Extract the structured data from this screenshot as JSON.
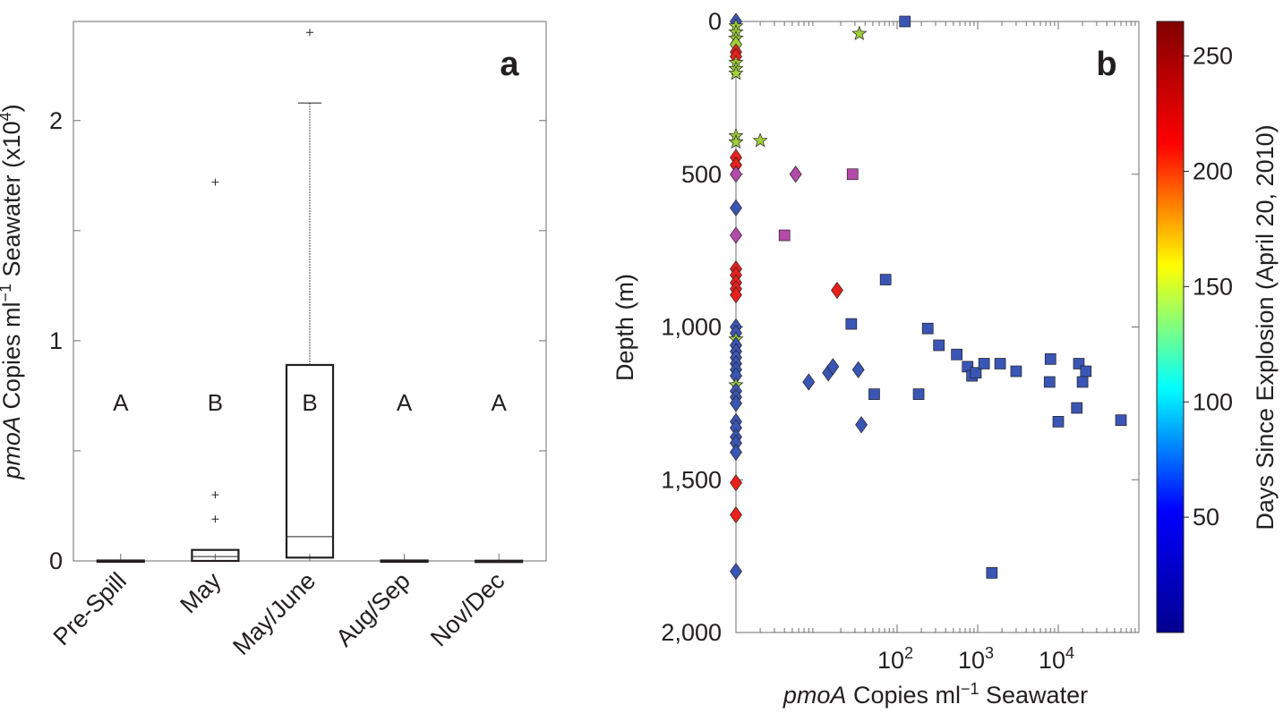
{
  "chart_data": [
    {
      "type": "boxplot",
      "panel_label": "a",
      "ylabel_italic": "pmoA",
      "ylabel_rest": " Copies ml",
      "ylabel_sup": "−1",
      "ylabel_tail": " Seawater (x10",
      "ylabel_exp": "4",
      "ylabel_close": ")",
      "ylim": [
        0,
        2.45
      ],
      "yticks": [
        0,
        1,
        2
      ],
      "categories": [
        "Pre-Spill",
        "May",
        "May/June",
        "Aug/Sep",
        "Nov/Dec"
      ],
      "group_letters": [
        "A",
        "B",
        "B",
        "A",
        "A"
      ],
      "group_letter_value": 0.72,
      "boxes": [
        {
          "q1": 0.0,
          "median": 0.0,
          "q3": 0.002,
          "whisker_low": 0.0,
          "whisker_high": 0.002,
          "outliers": []
        },
        {
          "q1": 0.0,
          "median": 0.02,
          "q3": 0.05,
          "whisker_low": 0.0,
          "whisker_high": 0.05,
          "outliers": [
            0.19,
            0.3,
            1.72
          ]
        },
        {
          "q1": 0.015,
          "median": 0.11,
          "q3": 0.89,
          "whisker_low": 0.015,
          "whisker_high": 2.08,
          "outliers": [
            2.4
          ]
        },
        {
          "q1": 0.0,
          "median": 0.0,
          "q3": 0.002,
          "whisker_low": 0.0,
          "whisker_high": 0.004,
          "outliers": []
        },
        {
          "q1": 0.0,
          "median": 0.0,
          "q3": 0.001,
          "whisker_low": 0.0,
          "whisker_high": 0.001,
          "outliers": []
        }
      ]
    },
    {
      "type": "scatter",
      "panel_label": "b",
      "xlabel_italic": "pmoA",
      "xlabel_rest": " Copies ml",
      "xlabel_sup": "−1",
      "xlabel_tail": " Seawater",
      "ylabel": "Depth (m)",
      "xscale": "log",
      "xlim": [
        1,
        100000
      ],
      "xticks": [
        100,
        1000,
        10000
      ],
      "xtick_labels": [
        {
          "base": "10",
          "exp": "2"
        },
        {
          "base": "10",
          "exp": "3"
        },
        {
          "base": "10",
          "exp": "4"
        }
      ],
      "y_inverted": true,
      "ylim": [
        2000,
        0
      ],
      "yticks": [
        0,
        500,
        1000,
        1500,
        2000
      ],
      "ytick_labels": [
        "0",
        "500",
        "1,000",
        "1,500",
        "2,000"
      ],
      "colorbar": {
        "label": "Days Since Explosion (April 20, 2010)",
        "range": [
          0,
          265
        ],
        "ticks": [
          50,
          100,
          150,
          200,
          250
        ],
        "tick_labels": [
          "50",
          "100",
          "150",
          "200",
          "250"
        ],
        "colormap": [
          "#00008f",
          "#0000ff",
          "#00ffff",
          "#ffff00",
          "#ff0000",
          "#800000"
        ]
      },
      "points": [
        {
          "x": 1,
          "depth": 0,
          "marker": "diamond",
          "days": 40
        },
        {
          "x": 1,
          "depth": 15,
          "marker": "star",
          "days": 130
        },
        {
          "x": 1,
          "depth": 35,
          "marker": "star",
          "days": 135
        },
        {
          "x": 1,
          "depth": 55,
          "marker": "star",
          "days": 130
        },
        {
          "x": 1,
          "depth": 75,
          "marker": "diamond",
          "days": 140
        },
        {
          "x": 1,
          "depth": 100,
          "marker": "diamond",
          "days": 245
        },
        {
          "x": 1,
          "depth": 115,
          "marker": "diamond",
          "days": 250
        },
        {
          "x": 1,
          "depth": 135,
          "marker": "star",
          "days": 130
        },
        {
          "x": 1,
          "depth": 155,
          "marker": "star",
          "days": 135
        },
        {
          "x": 1,
          "depth": 170,
          "marker": "star",
          "days": 130
        },
        {
          "x": 1,
          "depth": 375,
          "marker": "star",
          "days": 130
        },
        {
          "x": 1,
          "depth": 395,
          "marker": "star",
          "days": 135
        },
        {
          "x": 1,
          "depth": 445,
          "marker": "diamond",
          "days": 245
        },
        {
          "x": 1,
          "depth": 470,
          "marker": "diamond",
          "days": 250
        },
        {
          "x": 1,
          "depth": 500,
          "marker": "diamond",
          "days": "purple"
        },
        {
          "x": 1,
          "depth": 610,
          "marker": "diamond",
          "days": 40
        },
        {
          "x": 1,
          "depth": 700,
          "marker": "diamond",
          "days": "purple"
        },
        {
          "x": 1,
          "depth": 810,
          "marker": "diamond",
          "days": 245
        },
        {
          "x": 1,
          "depth": 830,
          "marker": "diamond",
          "days": 250
        },
        {
          "x": 1,
          "depth": 855,
          "marker": "diamond",
          "days": 245
        },
        {
          "x": 1,
          "depth": 875,
          "marker": "diamond",
          "days": 250
        },
        {
          "x": 1,
          "depth": 895,
          "marker": "diamond",
          "days": 245
        },
        {
          "x": 1,
          "depth": 1000,
          "marker": "diamond",
          "days": 40
        },
        {
          "x": 1,
          "depth": 1020,
          "marker": "diamond",
          "days": 40
        },
        {
          "x": 1,
          "depth": 1040,
          "marker": "star",
          "days": 130
        },
        {
          "x": 1,
          "depth": 1060,
          "marker": "diamond",
          "days": 40
        },
        {
          "x": 1,
          "depth": 1080,
          "marker": "diamond",
          "days": 40
        },
        {
          "x": 1,
          "depth": 1100,
          "marker": "diamond",
          "days": 40
        },
        {
          "x": 1,
          "depth": 1120,
          "marker": "diamond",
          "days": 40
        },
        {
          "x": 1,
          "depth": 1140,
          "marker": "diamond",
          "days": 40
        },
        {
          "x": 1,
          "depth": 1160,
          "marker": "diamond",
          "days": 40
        },
        {
          "x": 1,
          "depth": 1190,
          "marker": "star",
          "days": 130
        },
        {
          "x": 1,
          "depth": 1210,
          "marker": "diamond",
          "days": 40
        },
        {
          "x": 1,
          "depth": 1230,
          "marker": "diamond",
          "days": 40
        },
        {
          "x": 1,
          "depth": 1250,
          "marker": "diamond",
          "days": 40
        },
        {
          "x": 1,
          "depth": 1310,
          "marker": "diamond",
          "days": 40
        },
        {
          "x": 1,
          "depth": 1330,
          "marker": "diamond",
          "days": 40
        },
        {
          "x": 1,
          "depth": 1360,
          "marker": "diamond",
          "days": 40
        },
        {
          "x": 1,
          "depth": 1380,
          "marker": "diamond",
          "days": 40
        },
        {
          "x": 1,
          "depth": 1410,
          "marker": "diamond",
          "days": 40
        },
        {
          "x": 1,
          "depth": 1510,
          "marker": "diamond",
          "days": 245
        },
        {
          "x": 1,
          "depth": 1615,
          "marker": "diamond",
          "days": 250
        },
        {
          "x": 1,
          "depth": 1800,
          "marker": "diamond",
          "days": 40
        },
        {
          "x": 34,
          "depth": 40,
          "marker": "star",
          "days": 135
        },
        {
          "x": 125,
          "depth": 0,
          "marker": "square",
          "days": 40
        },
        {
          "x": 2,
          "depth": 390,
          "marker": "star",
          "days": 130
        },
        {
          "x": 5.5,
          "depth": 500,
          "marker": "diamond",
          "days": "purple"
        },
        {
          "x": 28,
          "depth": 500,
          "marker": "square",
          "days": "purple"
        },
        {
          "x": 4,
          "depth": 700,
          "marker": "square",
          "days": "purple"
        },
        {
          "x": 18,
          "depth": 880,
          "marker": "diamond",
          "days": 250
        },
        {
          "x": 72,
          "depth": 845,
          "marker": "square",
          "days": 40
        },
        {
          "x": 27,
          "depth": 990,
          "marker": "square",
          "days": 40
        },
        {
          "x": 240,
          "depth": 1005,
          "marker": "square",
          "days": 40
        },
        {
          "x": 330,
          "depth": 1060,
          "marker": "square",
          "days": 40
        },
        {
          "x": 550,
          "depth": 1090,
          "marker": "square",
          "days": 40
        },
        {
          "x": 750,
          "depth": 1130,
          "marker": "square",
          "days": 40
        },
        {
          "x": 850,
          "depth": 1160,
          "marker": "square",
          "days": 40
        },
        {
          "x": 950,
          "depth": 1150,
          "marker": "square",
          "days": 40
        },
        {
          "x": 1200,
          "depth": 1120,
          "marker": "square",
          "days": 40
        },
        {
          "x": 1900,
          "depth": 1120,
          "marker": "square",
          "days": 40
        },
        {
          "x": 3000,
          "depth": 1145,
          "marker": "square",
          "days": 40
        },
        {
          "x": 8000,
          "depth": 1105,
          "marker": "square",
          "days": 40
        },
        {
          "x": 7800,
          "depth": 1180,
          "marker": "square",
          "days": 40
        },
        {
          "x": 18000,
          "depth": 1120,
          "marker": "square",
          "days": 40
        },
        {
          "x": 22000,
          "depth": 1145,
          "marker": "square",
          "days": 40
        },
        {
          "x": 20000,
          "depth": 1180,
          "marker": "square",
          "days": 40
        },
        {
          "x": 17000,
          "depth": 1265,
          "marker": "square",
          "days": 40
        },
        {
          "x": 10000,
          "depth": 1310,
          "marker": "square",
          "days": 40
        },
        {
          "x": 60000,
          "depth": 1305,
          "marker": "square",
          "days": 40
        },
        {
          "x": 185,
          "depth": 1220,
          "marker": "square",
          "days": 40
        },
        {
          "x": 52,
          "depth": 1220,
          "marker": "square",
          "days": 40
        },
        {
          "x": 1500,
          "depth": 1805,
          "marker": "square",
          "days": 40
        },
        {
          "x": 8,
          "depth": 1180,
          "marker": "diamond",
          "days": 40
        },
        {
          "x": 14,
          "depth": 1150,
          "marker": "diamond",
          "days": 40
        },
        {
          "x": 16,
          "depth": 1130,
          "marker": "diamond",
          "days": 40
        },
        {
          "x": 33,
          "depth": 1140,
          "marker": "diamond",
          "days": 40
        },
        {
          "x": 36,
          "depth": 1320,
          "marker": "diamond",
          "days": 40
        }
      ]
    }
  ]
}
